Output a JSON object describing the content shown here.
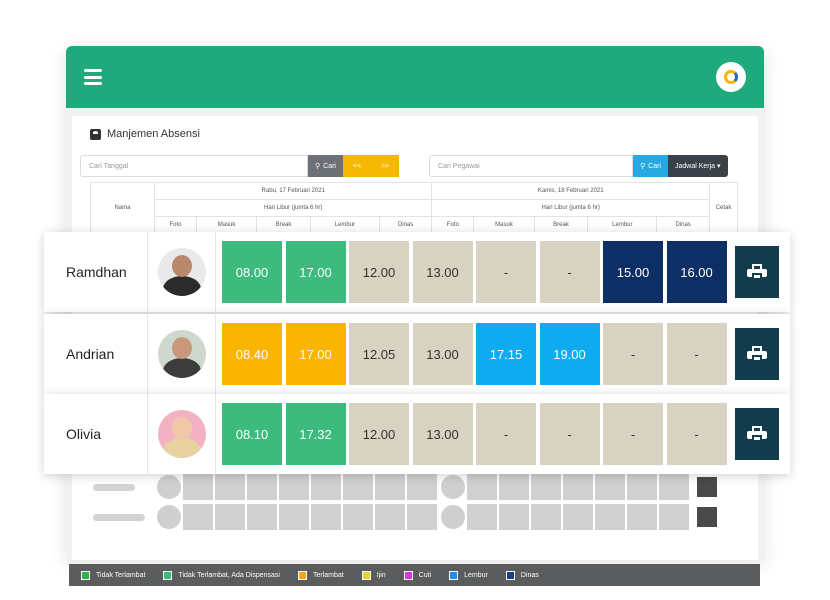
{
  "panel_title": "Manjemen Absensi",
  "search_date": {
    "placeholder": "Cari Tanggal",
    "button": "Cari",
    "prev": "<<",
    "next": ">>"
  },
  "search_employee": {
    "placeholder": "Cari Pegawai",
    "button": "Cari",
    "schedule_button": "Jadwal Kerja ▾"
  },
  "table": {
    "col_name": "Nama",
    "col_print": "Cetak",
    "day1": {
      "date": "Rabu, 17 Februari 2021",
      "note": "Hari Libur (jumta 6 hr)"
    },
    "day2": {
      "date": "Kamis, 18 Februari 2021",
      "note": "Hari Libur (jumta 6 hr)"
    },
    "sub_cols": [
      "Foto",
      "Masuk",
      "Break",
      "Lembur",
      "Dinas"
    ]
  },
  "rows": [
    {
      "name": "Ramdhan",
      "avatar": "male-avatar-1",
      "cells": [
        {
          "v": "08.00",
          "c": "#3dba7e"
        },
        {
          "v": "17.00",
          "c": "#3dba7e"
        },
        {
          "v": "12.00",
          "c": "#d8d2c2"
        },
        {
          "v": "13.00",
          "c": "#d8d2c2"
        },
        {
          "v": "-",
          "c": "#d8d2c2"
        },
        {
          "v": "-",
          "c": "#d8d2c2"
        },
        {
          "v": "15.00",
          "c": "#0d2f66"
        },
        {
          "v": "16.00",
          "c": "#0d2f66"
        }
      ]
    },
    {
      "name": "Andrian",
      "avatar": "male-avatar-2",
      "cells": [
        {
          "v": "08.40",
          "c": "#fbb500"
        },
        {
          "v": "17.00",
          "c": "#fbb500"
        },
        {
          "v": "12.05",
          "c": "#d8d2c2"
        },
        {
          "v": "13.00",
          "c": "#d8d2c2"
        },
        {
          "v": "17.15",
          "c": "#10aaf0"
        },
        {
          "v": "19.00",
          "c": "#10aaf0"
        },
        {
          "v": "-",
          "c": "#d8d2c2"
        },
        {
          "v": "-",
          "c": "#d8d2c2"
        }
      ]
    },
    {
      "name": "Olivia",
      "avatar": "female-avatar",
      "cells": [
        {
          "v": "08.10",
          "c": "#3dba7e"
        },
        {
          "v": "17.32",
          "c": "#3dba7e"
        },
        {
          "v": "12.00",
          "c": "#d8d2c2"
        },
        {
          "v": "13.00",
          "c": "#d8d2c2"
        },
        {
          "v": "-",
          "c": "#d8d2c2"
        },
        {
          "v": "-",
          "c": "#d8d2c2"
        },
        {
          "v": "-",
          "c": "#d8d2c2"
        },
        {
          "v": "-",
          "c": "#d8d2c2"
        }
      ]
    }
  ],
  "legend": [
    {
      "label": "Tidak Terlambat",
      "color": "#2fb24c"
    },
    {
      "label": "Tidak Terlambat, Ada Dispensasi",
      "color": "#3dba7e"
    },
    {
      "label": "Terlambat",
      "color": "#f5a623"
    },
    {
      "label": "Ijin",
      "color": "#e6d33a"
    },
    {
      "label": "Cuti",
      "color": "#d23ad8"
    },
    {
      "label": "Lembur",
      "color": "#1f8ef0"
    },
    {
      "label": "Dinas",
      "color": "#173c82"
    }
  ],
  "colors": {
    "header": "#1faa7d",
    "print_button": "#123b4b",
    "legend_bar": "#5a5c5e"
  }
}
